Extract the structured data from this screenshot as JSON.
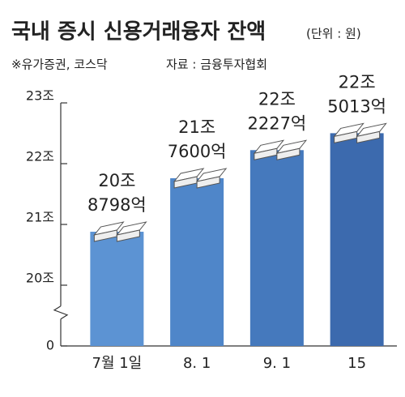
{
  "chart_data": {
    "type": "bar",
    "title": "국내 증시 신용거래융자 잔액",
    "unit_note": "(단위 : 원)",
    "note": "※유가증권, 코스닥",
    "source": "자료 : 금융투자협회",
    "categories": [
      "7월 1일",
      "8. 1",
      "9. 1",
      "15"
    ],
    "values": [
      20.8798,
      21.76,
      22.2227,
      22.5013
    ],
    "value_labels": [
      [
        "20조",
        "8798억"
      ],
      [
        "21조",
        "7600억"
      ],
      [
        "22조",
        "2227억"
      ],
      [
        "22조",
        "5013억"
      ]
    ],
    "colors": [
      "#5c93d3",
      "#4f86c9",
      "#4579bd",
      "#3c6aae"
    ],
    "ylim": [
      0,
      23
    ],
    "yticks": [
      0,
      {
        "value": 20,
        "label": "20조"
      },
      {
        "value": 21,
        "label": "21조"
      },
      {
        "value": 22,
        "label": "22조"
      },
      {
        "value": 23,
        "label": "23조"
      }
    ],
    "axis_break": true
  }
}
